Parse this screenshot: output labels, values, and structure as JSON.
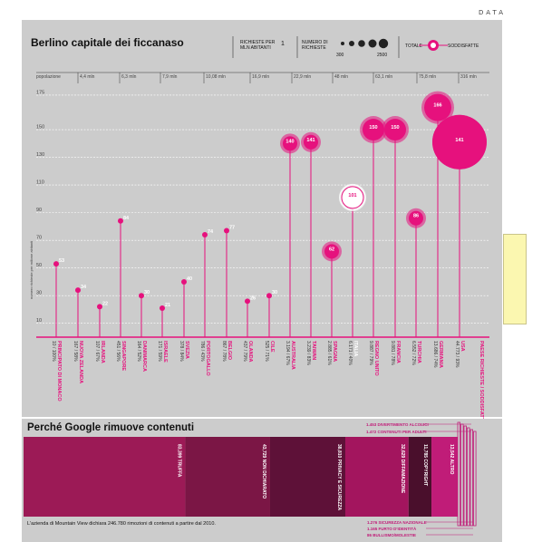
{
  "header": {
    "label": "DATA"
  },
  "top": {
    "title": "Berlino capitale dei ficcanaso",
    "legend": {
      "requests_per_million": "RICHIESTE PER MLN ABITANTI",
      "requests_per_million_value": "1",
      "num_requests": "NUMERO DI RICHIESTE",
      "num_min": "300",
      "num_max": "2500",
      "total": "TOTALE",
      "satisfied": "SODDISFATTE"
    }
  },
  "chart_data": {
    "type": "scatter",
    "title": "Berlino capitale dei ficcanaso",
    "ylabel": "numero richieste per milione abitanti",
    "xlabel": "popolazione",
    "ylim": [
      0,
      190
    ],
    "yticks": [
      10,
      30,
      50,
      70,
      90,
      110,
      130,
      150,
      175
    ],
    "population_ticks": [
      "4,4 mln",
      "6,3 mln",
      "7,9 mln",
      "10,08 mln",
      "16,9 mln",
      "22,9 mln",
      "48 mln",
      "63,1 mln",
      "75,8 mln",
      "316 mln"
    ],
    "x_header_label": "popolazione",
    "last_column_label": "PAESE RICHIESTE / SODDISFATTE%",
    "series": [
      {
        "country": "PRINCIPATO DI MONACO",
        "stat": "10 / 100%",
        "value": 53,
        "size": "small"
      },
      {
        "country": "NUOVA ZELANDA",
        "stat": "167 / 58%",
        "value": 34,
        "size": "small"
      },
      {
        "country": "IRLANDA",
        "stat": "107 / 67%",
        "value": 22,
        "size": "small"
      },
      {
        "country": "SINGAPORE",
        "stat": "451 / 56%",
        "value": 84,
        "size": "small"
      },
      {
        "country": "DANIMARCA",
        "stat": "164 / 52%",
        "value": 30,
        "size": "small"
      },
      {
        "country": "ISRAELE",
        "stat": "171 / 59%",
        "value": 21,
        "size": "small"
      },
      {
        "country": "SVEZIA",
        "stat": "378 / 84%",
        "value": 40,
        "size": "small"
      },
      {
        "country": "PORTOGALLO",
        "stat": "786 / 43%",
        "value": 74,
        "size": "small"
      },
      {
        "country": "BELGIO",
        "stat": "867 / 78%",
        "value": 77,
        "size": "small"
      },
      {
        "country": "OLANDA",
        "stat": "437 / 79%",
        "value": 26,
        "size": "small"
      },
      {
        "country": "CILE",
        "stat": "525 / 71%",
        "value": 30,
        "size": "small"
      },
      {
        "country": "AUSTRALIA",
        "stat": "3.194 / 67%",
        "value": 140,
        "size": "medium"
      },
      {
        "country": "TAIWAN",
        "stat": "3.239 / 83%",
        "value": 141,
        "size": "medium"
      },
      {
        "country": "SPAGNA",
        "stat": "2.885 / 61%",
        "value": 62,
        "size": "medium"
      },
      {
        "country": "ITALIA",
        "stat": "6.171 / 40%",
        "value": 101,
        "size": "large",
        "muted": true
      },
      {
        "country": "REGNO UNITO",
        "stat": "9.887 / 79%",
        "value": 150,
        "size": "large"
      },
      {
        "country": "FRANCIA",
        "stat": "9.881 / 78%",
        "value": 150,
        "size": "large"
      },
      {
        "country": "TURCHIA",
        "stat": "6.552 / 72%",
        "value": 86,
        "size": "medium"
      },
      {
        "country": "GERMANIA",
        "stat": "13.686 / 74%",
        "value": 166,
        "size": "xlarge"
      },
      {
        "country": "USA",
        "stat": "44.773 / 93%",
        "value": 141,
        "size": "xxlarge"
      }
    ]
  },
  "bottom": {
    "title": "Perché Google rimuove contenuti",
    "note": "L'azienda di Mountain View dichiara 246.780 rimozioni di contenuti a partire dal 2010.",
    "segments": [
      {
        "label": "83,399 TRUFFA",
        "value": 83399,
        "color": "#9c1a56"
      },
      {
        "label": "43,729 NON DICHIARATO",
        "value": 43729,
        "color": "#7b1645"
      },
      {
        "label": "38,810 PRIVACY E SICUREZZA",
        "value": 38810,
        "color": "#5e1138"
      },
      {
        "label": "32,629 DIFFAMAZIONE",
        "value": 32629,
        "color": "#a3155e"
      },
      {
        "label": "11,785 COPYRIGHT",
        "value": 11785,
        "color": "#4a0f2c"
      },
      {
        "label": "13,542 ALTRO",
        "value": 13542,
        "color": "#c01c78"
      }
    ],
    "callouts_top": [
      "1.453 DIVERTIMENTO ALCOLICI",
      "1.472 CONTENUTI PER ADULTI"
    ],
    "callouts_bottom": [
      "1.276 SICUREZZA NAZIONALE",
      "1.165 FURTO D'IDENTITÀ",
      "86 BULLISMO/MOLESTIE"
    ]
  }
}
